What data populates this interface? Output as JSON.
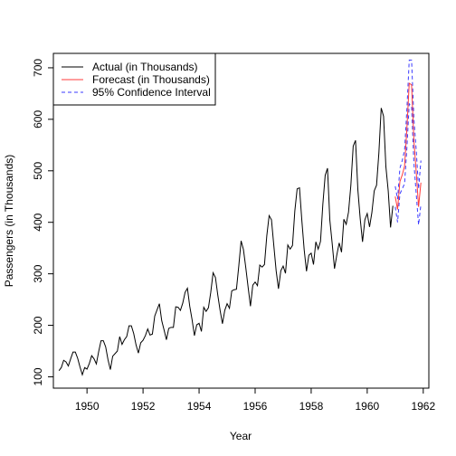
{
  "chart_data": {
    "type": "line",
    "title": "",
    "xlabel": "Year",
    "ylabel": "Passengers (in Thousands)",
    "xlim": [
      1948.8,
      1962.2
    ],
    "ylim": [
      78,
      728
    ],
    "xticks": [
      1950,
      1952,
      1954,
      1956,
      1958,
      1960,
      1962
    ],
    "xtick_labels": [
      "1950",
      "1952",
      "1954",
      "1956",
      "1958",
      "1960",
      "1962"
    ],
    "yticks": [
      100,
      200,
      300,
      400,
      500,
      600,
      700
    ],
    "ytick_labels": [
      "100",
      "200",
      "300",
      "400",
      "500",
      "600",
      "700"
    ],
    "grid": false,
    "legend": {
      "position": "top-left",
      "entries": [
        {
          "label": "Actual (in Thousands)",
          "color": "#000000",
          "dash": "solid"
        },
        {
          "label": "Forecast (in Thousands)",
          "color": "#ff3b3b",
          "dash": "solid"
        },
        {
          "label": "95% Confidence Interval",
          "color": "#3a3aff",
          "dash": "dashed"
        }
      ]
    },
    "actual": {
      "name": "Actual (in Thousands)",
      "color": "#000000",
      "start_year": 1949,
      "frequency": 12,
      "values": [
        112,
        118,
        132,
        129,
        121,
        135,
        148,
        148,
        136,
        119,
        104,
        118,
        115,
        126,
        141,
        135,
        125,
        149,
        170,
        170,
        158,
        133,
        114,
        140,
        145,
        150,
        178,
        163,
        172,
        178,
        199,
        199,
        184,
        162,
        146,
        166,
        171,
        180,
        193,
        181,
        183,
        218,
        230,
        242,
        209,
        191,
        172,
        194,
        196,
        196,
        236,
        235,
        229,
        243,
        264,
        272,
        237,
        211,
        180,
        201,
        204,
        188,
        235,
        227,
        234,
        264,
        302,
        293,
        259,
        229,
        203,
        229,
        242,
        233,
        267,
        269,
        270,
        315,
        364,
        347,
        312,
        274,
        237,
        278,
        284,
        277,
        317,
        313,
        318,
        374,
        413,
        405,
        355,
        306,
        271,
        306,
        315,
        301,
        356,
        348,
        355,
        422,
        465,
        467,
        404,
        347,
        305,
        336,
        340,
        318,
        362,
        348,
        363,
        435,
        491,
        505,
        404,
        359,
        310,
        337,
        360,
        342,
        406,
        396,
        420,
        472,
        548,
        559,
        463,
        407,
        362,
        405,
        417,
        391,
        419,
        461,
        472,
        535,
        622,
        606,
        508,
        461,
        390,
        432
      ]
    },
    "forecast": {
      "name": "Forecast (in Thousands)",
      "color": "#ff3b3b",
      "start_year": 1961,
      "frequency": 12,
      "values": [
        450,
        425,
        479,
        492,
        509,
        583,
        670,
        667,
        558,
        497,
        430,
        477
      ]
    },
    "ci_upper": {
      "name": "95% Confidence Interval",
      "color": "#3a3aff",
      "start_year": 1961,
      "frequency": 12,
      "values": [
        470,
        445,
        505,
        520,
        540,
        620,
        715,
        715,
        600,
        540,
        465,
        520
      ]
    },
    "ci_lower": {
      "name": "95% Confidence Interval",
      "color": "#3a3aff",
      "start_year": 1961,
      "frequency": 12,
      "values": [
        430,
        400,
        455,
        465,
        475,
        545,
        630,
        625,
        515,
        455,
        395,
        435
      ]
    }
  }
}
